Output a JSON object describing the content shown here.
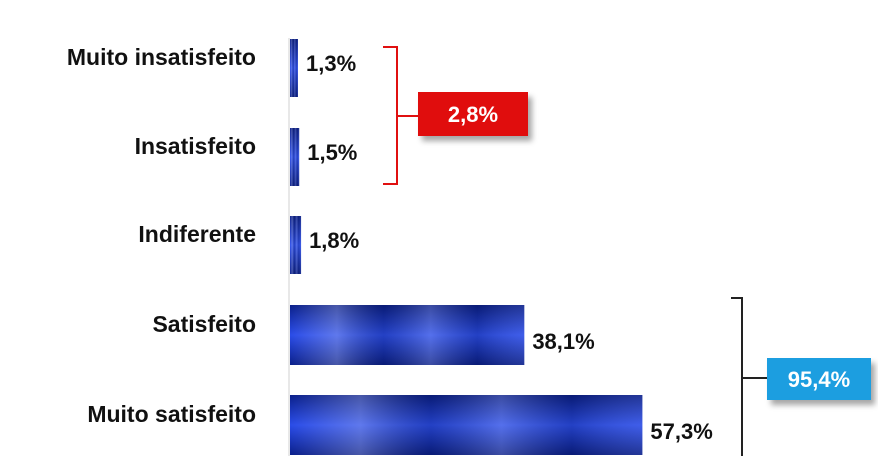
{
  "chart_data": {
    "type": "bar",
    "orientation": "horizontal",
    "categories": [
      "Muito insatisfeito",
      "Insatisfeito",
      "Indiferente",
      "Satisfeito",
      "Muito satisfeito"
    ],
    "values": [
      1.3,
      1.5,
      1.8,
      38.1,
      57.3
    ],
    "value_labels": [
      "1,3%",
      "1,5%",
      "1,8%",
      "38,1%",
      "57,3%"
    ],
    "title": "",
    "xlabel": "",
    "ylabel": "",
    "xlim": [
      0,
      60
    ],
    "grid": false,
    "legend": "none",
    "group_annotations": [
      {
        "label": "2,8%",
        "categories": [
          "Muito insatisfeito",
          "Insatisfeito"
        ],
        "color": "#e01010"
      },
      {
        "label": "95,4%",
        "categories": [
          "Satisfeito",
          "Muito satisfeito"
        ],
        "color": "#1a9ee0"
      }
    ]
  },
  "colors": {
    "bar": "#1a3ad0",
    "bar_dark": "#071a7a",
    "bar_light": "#4a6cf0",
    "negative_bracket": "#e01010",
    "positive_bracket": "#222222",
    "negative_badge": "#e01010",
    "positive_badge": "#1a9ee0"
  }
}
